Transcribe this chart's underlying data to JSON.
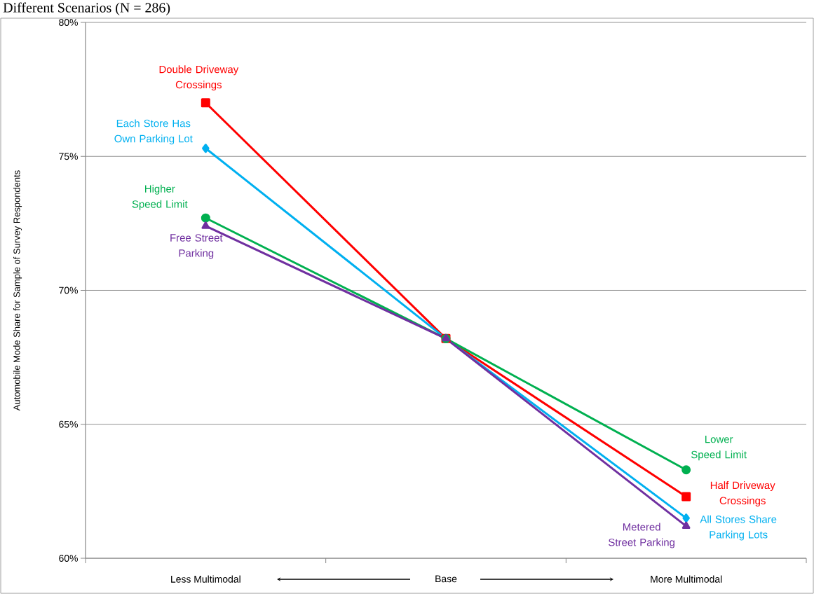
{
  "chart_data": {
    "type": "line",
    "title": "Different Scenarios (N = 286)",
    "ylabel": "Automobile Mode Share for Sample of Survey Respondents",
    "categories": [
      "Less Multimodal",
      "Base",
      "More Multimodal"
    ],
    "ylim": [
      60,
      80
    ],
    "yticks": [
      {
        "value": 60,
        "label": "60%"
      },
      {
        "value": 65,
        "label": "65%"
      },
      {
        "value": 70,
        "label": "70%"
      },
      {
        "value": 75,
        "label": "75%"
      },
      {
        "value": 80,
        "label": "80%"
      }
    ],
    "grid": "y",
    "legend": false,
    "series": [
      {
        "color": "#ff0000",
        "marker": "square",
        "values": [
          77.0,
          68.2,
          62.3
        ]
      },
      {
        "color": "#00b0f0",
        "marker": "diamond",
        "values": [
          75.3,
          68.2,
          61.5
        ]
      },
      {
        "color": "#00b050",
        "marker": "circle",
        "values": [
          72.7,
          68.2,
          63.3
        ]
      },
      {
        "color": "#7030a0",
        "marker": "triangle",
        "values": [
          72.4,
          68.2,
          61.2
        ]
      }
    ],
    "annotations": [
      {
        "text": "Double Driveway Crossings",
        "x": "Less Multimodal",
        "y": 77.0
      },
      {
        "text": "Each Store Has Own Parking Lot",
        "x": "Less Multimodal",
        "y": 75.3
      },
      {
        "text": "Higher Speed Limit",
        "x": "Less Multimodal",
        "y": 72.7
      },
      {
        "text": "Free Street Parking",
        "x": "Less Multimodal",
        "y": 72.4
      },
      {
        "text": "Lower Speed Limit",
        "x": "More Multimodal",
        "y": 63.3
      },
      {
        "text": "Half Driveway Crossings",
        "x": "More Multimodal",
        "y": 62.3
      },
      {
        "text": "All Stores Share Parking Lots",
        "x": "More Multimodal",
        "y": 61.5
      },
      {
        "text": "Metered Street Parking",
        "x": "More Multimodal",
        "y": 61.2
      }
    ]
  }
}
